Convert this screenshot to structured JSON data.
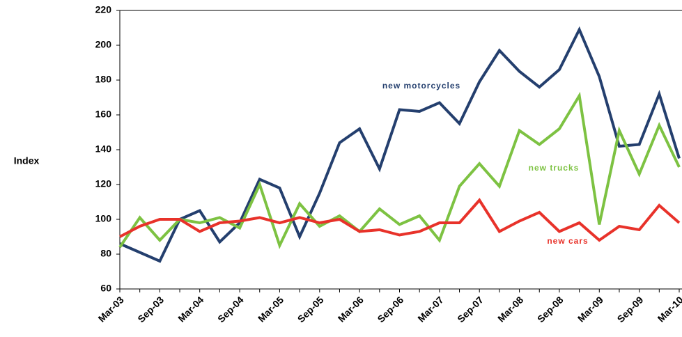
{
  "chart_data": {
    "type": "line",
    "y_label": "Index",
    "categories": [
      "Mar-03",
      null,
      "Sep-03",
      null,
      "Mar-04",
      null,
      "Sep-04",
      null,
      "Mar-05",
      null,
      "Sep-05",
      null,
      "Mar-06",
      null,
      "Sep-06",
      null,
      "Mar-07",
      null,
      "Sep-07",
      null,
      "Mar-08",
      null,
      "Sep-08",
      null,
      "Mar-09",
      null,
      "Sep-09",
      null,
      "Mar-10"
    ],
    "series": [
      {
        "name": "new motorcycles",
        "color": "#243f6e",
        "values": [
          86,
          81,
          76,
          100,
          105,
          87,
          98,
          123,
          118,
          90,
          115,
          144,
          152,
          129,
          163,
          162,
          167,
          155,
          179,
          197,
          185,
          176,
          186,
          209,
          182,
          142,
          143,
          172,
          135
        ]
      },
      {
        "name": "new trucks",
        "color": "#7dc242",
        "values": [
          84,
          101,
          88,
          100,
          98,
          101,
          95,
          120,
          85,
          109,
          96,
          102,
          93,
          106,
          97,
          102,
          88,
          119,
          132,
          119,
          151,
          143,
          152,
          171,
          97,
          151,
          126,
          154,
          130
        ]
      },
      {
        "name": "new cars",
        "color": "#e8322a",
        "values": [
          90,
          96,
          100,
          100,
          93,
          98,
          99,
          101,
          98,
          101,
          98,
          100,
          93,
          94,
          91,
          93,
          98,
          98,
          111,
          93,
          99,
          104,
          93,
          98,
          88,
          96,
          94,
          108,
          98
        ]
      }
    ],
    "ylim": [
      60,
      220
    ],
    "yticks": [
      60,
      80,
      100,
      120,
      140,
      160,
      180,
      200,
      220
    ],
    "grid": false
  }
}
